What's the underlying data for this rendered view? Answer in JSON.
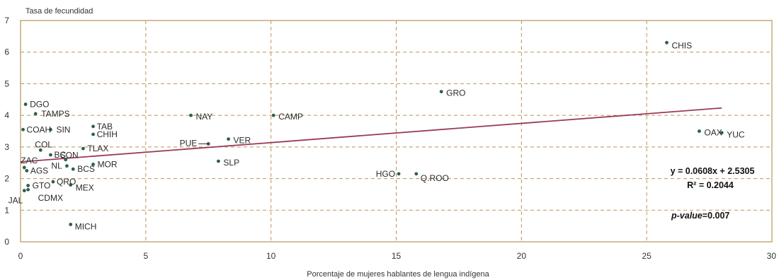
{
  "chart_data": {
    "type": "scatter",
    "ylabel": "Tasa de fecundidad",
    "xlabel": "Porcentaje de mujeres hablantes de lengua indígena",
    "xlim": [
      0,
      30
    ],
    "ylim": [
      0,
      7
    ],
    "x_ticks": [
      "0",
      "5",
      "10",
      "15",
      "20",
      "25",
      "30"
    ],
    "y_ticks": [
      "0",
      "1",
      "2",
      "3",
      "4",
      "5",
      "6",
      "7"
    ],
    "grid": true,
    "colors": {
      "points": "#2e5e4e",
      "trend": "#9b3a5a",
      "grid": "#b8955a",
      "frame": "#b8955a"
    },
    "points": [
      {
        "label": "DGO",
        "x": 0.2,
        "y": 4.35
      },
      {
        "label": "TAMPS",
        "x": 0.6,
        "y": 4.05
      },
      {
        "label": "COAH",
        "x": 0.1,
        "y": 3.55
      },
      {
        "label": "SIN",
        "x": 1.2,
        "y": 3.55
      },
      {
        "label": "TAB",
        "x": 2.9,
        "y": 3.65
      },
      {
        "label": "CHIH",
        "x": 2.9,
        "y": 3.4
      },
      {
        "label": "COL",
        "x": 0.8,
        "y": 2.9
      },
      {
        "label": "TLAX",
        "x": 2.5,
        "y": 2.95
      },
      {
        "label": "BC",
        "x": 1.2,
        "y": 2.75
      },
      {
        "label": "SON",
        "x": 1.8,
        "y": 2.6
      },
      {
        "label": "ZAC",
        "x": 0.15,
        "y": 2.35
      },
      {
        "label": "NL",
        "x": 1.85,
        "y": 2.4
      },
      {
        "label": "BCS",
        "x": 2.1,
        "y": 2.3
      },
      {
        "label": "MOR",
        "x": 2.9,
        "y": 2.45
      },
      {
        "label": "AGS",
        "x": 0.25,
        "y": 2.25
      },
      {
        "label": "QRO",
        "x": 1.3,
        "y": 1.9
      },
      {
        "label": "MEX",
        "x": 2.0,
        "y": 1.8
      },
      {
        "label": "GTO",
        "x": 0.3,
        "y": 1.78
      },
      {
        "label": "CDMX",
        "x": 0.3,
        "y": 1.65
      },
      {
        "label": "JAL",
        "x": 0.15,
        "y": 1.62
      },
      {
        "label": "MICH",
        "x": 2.0,
        "y": 0.55
      },
      {
        "label": "NAY",
        "x": 6.8,
        "y": 4.0
      },
      {
        "label": "CAMP",
        "x": 10.1,
        "y": 4.0
      },
      {
        "label": "PUE",
        "x": 7.5,
        "y": 3.1
      },
      {
        "label": "VER",
        "x": 8.3,
        "y": 3.25
      },
      {
        "label": "SLP",
        "x": 7.9,
        "y": 2.55
      },
      {
        "label": "GRO",
        "x": 16.8,
        "y": 4.75
      },
      {
        "label": "HGO",
        "x": 15.1,
        "y": 2.15
      },
      {
        "label": "Q.ROO",
        "x": 15.8,
        "y": 2.15
      },
      {
        "label": "CHIS",
        "x": 25.8,
        "y": 6.3
      },
      {
        "label": "OAX",
        "x": 27.1,
        "y": 3.5
      },
      {
        "label": "YUC",
        "x": 28.0,
        "y": 3.45
      }
    ],
    "trendline": {
      "slope": 0.0608,
      "intercept": 2.5305,
      "x_range": [
        0,
        28
      ]
    },
    "annotations": {
      "equation": "y = 0.0608x + 2.5305",
      "r2": "R² = 0.2044",
      "pvalue_label": "p-value",
      "pvalue_value": "=0.007"
    }
  }
}
